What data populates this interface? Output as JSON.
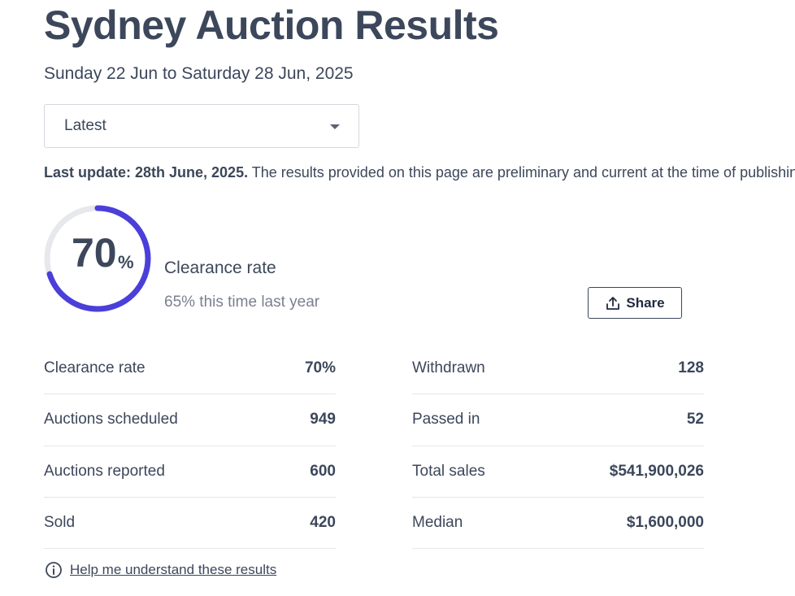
{
  "header": {
    "title": "Sydney Auction Results",
    "date_range": "Sunday 22 Jun to Saturday 28 Jun, 2025"
  },
  "filter": {
    "selected": "Latest"
  },
  "notice": {
    "bold": "Last update: 28th June, 2025.",
    "text": " The results provided on this page are preliminary and current at the time of publishing"
  },
  "summary": {
    "gauge_value": "70",
    "gauge_unit": "%",
    "gauge_fraction": 0.7,
    "label": "Clearance rate",
    "comparison": "65% this time last year",
    "accent_color": "#4b3fd9",
    "track_color": "#e6e8ec"
  },
  "share": {
    "label": "Share",
    "icon": "share-upload-icon"
  },
  "stats_left": [
    {
      "label": "Clearance rate",
      "value": "70%"
    },
    {
      "label": "Auctions scheduled",
      "value": "949"
    },
    {
      "label": "Auctions reported",
      "value": "600"
    },
    {
      "label": "Sold",
      "value": "420"
    }
  ],
  "stats_right": [
    {
      "label": "Withdrawn",
      "value": "128"
    },
    {
      "label": "Passed in",
      "value": "52"
    },
    {
      "label": "Total sales",
      "value": "$541,900,026"
    },
    {
      "label": "Median",
      "value": "$1,600,000"
    }
  ],
  "help": {
    "label": "Help me understand these results",
    "icon": "info-icon"
  }
}
